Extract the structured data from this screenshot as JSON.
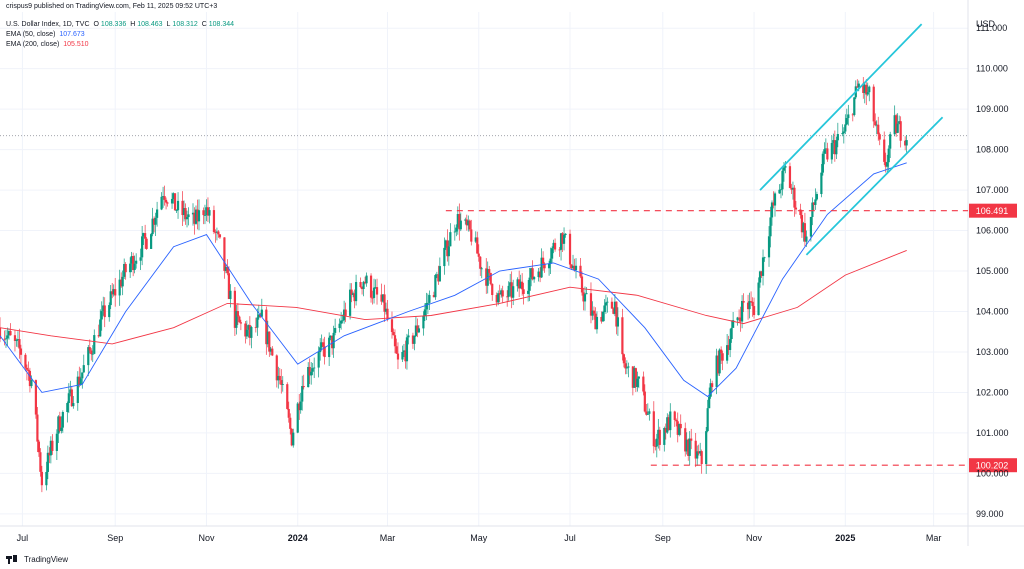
{
  "header": {
    "published": "crispus9 published on TradingView.com, Feb 11, 2025 09:52 UTC+3",
    "symbol": "U.S. Dollar Index, 1D, TVC",
    "ohlc": {
      "o_label": "O",
      "o": "108.336",
      "h_label": "H",
      "h": "108.463",
      "l_label": "L",
      "l": "108.312",
      "c_label": "C",
      "c": "108.344"
    },
    "ema50": {
      "label": "EMA (50, close)",
      "value": "107.673"
    },
    "ema200": {
      "label": "EMA (200, close)",
      "value": "105.510"
    }
  },
  "footer": {
    "brand": "TradingView"
  },
  "chart_data": {
    "type": "candlestick",
    "currency": "USD",
    "ylim": [
      98.7,
      111.4
    ],
    "y_ticks": [
      "99.000",
      "100.000",
      "101.000",
      "102.000",
      "103.000",
      "104.000",
      "105.000",
      "106.000",
      "107.000",
      "108.000",
      "109.000",
      "110.000",
      "111.000"
    ],
    "x_range": [
      "2023-06-16",
      "2025-03-24"
    ],
    "x_ticks": [
      {
        "date": "2023-07-01",
        "label": "Jul",
        "bold": false
      },
      {
        "date": "2023-09-01",
        "label": "Sep",
        "bold": false
      },
      {
        "date": "2023-11-01",
        "label": "Nov",
        "bold": false
      },
      {
        "date": "2024-01-01",
        "label": "2024",
        "bold": true
      },
      {
        "date": "2024-03-01",
        "label": "Mar",
        "bold": false
      },
      {
        "date": "2024-05-01",
        "label": "May",
        "bold": false
      },
      {
        "date": "2024-07-01",
        "label": "Jul",
        "bold": false
      },
      {
        "date": "2024-09-01",
        "label": "Sep",
        "bold": false
      },
      {
        "date": "2024-11-01",
        "label": "Nov",
        "bold": false
      },
      {
        "date": "2025-01-01",
        "label": "2025",
        "bold": true
      },
      {
        "date": "2025-03-01",
        "label": "Mar",
        "bold": false
      }
    ],
    "price_path": [
      [
        "2023-06-16",
        103.6
      ],
      [
        "2023-06-30",
        103.0
      ],
      [
        "2023-07-07",
        102.3
      ],
      [
        "2023-07-14",
        99.8
      ],
      [
        "2023-07-25",
        101.2
      ],
      [
        "2023-08-10",
        102.5
      ],
      [
        "2023-08-25",
        104.0
      ],
      [
        "2023-09-08",
        105.0
      ],
      [
        "2023-09-22",
        105.8
      ],
      [
        "2023-10-03",
        107.0
      ],
      [
        "2023-10-13",
        106.5
      ],
      [
        "2023-10-24",
        106.2
      ],
      [
        "2023-10-31",
        106.6
      ],
      [
        "2023-11-10",
        105.6
      ],
      [
        "2023-11-20",
        103.8
      ],
      [
        "2023-11-30",
        103.4
      ],
      [
        "2023-12-08",
        103.8
      ],
      [
        "2023-12-20",
        102.3
      ],
      [
        "2023-12-28",
        100.9
      ],
      [
        "2024-01-05",
        102.4
      ],
      [
        "2024-01-15",
        102.9
      ],
      [
        "2024-01-25",
        103.3
      ],
      [
        "2024-02-05",
        104.3
      ],
      [
        "2024-02-14",
        104.8
      ],
      [
        "2024-02-28",
        104.1
      ],
      [
        "2024-03-08",
        102.7
      ],
      [
        "2024-03-20",
        103.5
      ],
      [
        "2024-04-01",
        104.6
      ],
      [
        "2024-04-16",
        106.3
      ],
      [
        "2024-04-26",
        105.9
      ],
      [
        "2024-05-03",
        105.1
      ],
      [
        "2024-05-15",
        104.3
      ],
      [
        "2024-05-28",
        104.6
      ],
      [
        "2024-06-07",
        104.9
      ],
      [
        "2024-06-26",
        105.9
      ],
      [
        "2024-07-05",
        104.9
      ],
      [
        "2024-07-17",
        103.8
      ],
      [
        "2024-07-31",
        104.2
      ],
      [
        "2024-08-05",
        102.7
      ],
      [
        "2024-08-16",
        102.2
      ],
      [
        "2024-08-27",
        100.8
      ],
      [
        "2024-09-06",
        101.3
      ],
      [
        "2024-09-17",
        100.7
      ],
      [
        "2024-09-27",
        100.3
      ],
      [
        "2024-10-04",
        102.4
      ],
      [
        "2024-10-15",
        103.3
      ],
      [
        "2024-10-25",
        104.2
      ],
      [
        "2024-11-01",
        104.1
      ],
      [
        "2024-11-13",
        106.5
      ],
      [
        "2024-11-22",
        107.5
      ],
      [
        "2024-12-06",
        105.8
      ],
      [
        "2024-12-18",
        107.8
      ],
      [
        "2024-12-31",
        108.4
      ],
      [
        "2025-01-10",
        109.6
      ],
      [
        "2025-01-17",
        109.3
      ],
      [
        "2025-01-27",
        107.5
      ],
      [
        "2025-02-03",
        108.6
      ],
      [
        "2025-02-11",
        108.344
      ]
    ],
    "ema50": [
      [
        "2023-06-16",
        103.4
      ],
      [
        "2023-07-14",
        102.0
      ],
      [
        "2023-08-10",
        102.2
      ],
      [
        "2023-09-08",
        104.0
      ],
      [
        "2023-10-10",
        105.6
      ],
      [
        "2023-11-01",
        105.9
      ],
      [
        "2023-12-01",
        104.2
      ],
      [
        "2024-01-01",
        102.7
      ],
      [
        "2024-02-01",
        103.4
      ],
      [
        "2024-03-15",
        104.0
      ],
      [
        "2024-04-15",
        104.4
      ],
      [
        "2024-05-15",
        105.0
      ],
      [
        "2024-06-20",
        105.2
      ],
      [
        "2024-07-20",
        104.8
      ],
      [
        "2024-08-20",
        103.6
      ],
      [
        "2024-09-15",
        102.3
      ],
      [
        "2024-10-01",
        101.9
      ],
      [
        "2024-10-20",
        102.6
      ],
      [
        "2024-11-20",
        104.8
      ],
      [
        "2024-12-20",
        106.4
      ],
      [
        "2025-01-20",
        107.4
      ],
      [
        "2025-02-11",
        107.673
      ]
    ],
    "ema200": [
      [
        "2023-06-16",
        103.6
      ],
      [
        "2023-07-20",
        103.4
      ],
      [
        "2023-08-30",
        103.2
      ],
      [
        "2023-10-10",
        103.6
      ],
      [
        "2023-11-15",
        104.2
      ],
      [
        "2023-12-31",
        104.1
      ],
      [
        "2024-02-15",
        103.8
      ],
      [
        "2024-03-30",
        103.9
      ],
      [
        "2024-05-15",
        104.2
      ],
      [
        "2024-07-01",
        104.6
      ],
      [
        "2024-08-15",
        104.4
      ],
      [
        "2024-09-30",
        103.9
      ],
      [
        "2024-10-25",
        103.7
      ],
      [
        "2024-11-30",
        104.1
      ],
      [
        "2025-01-01",
        104.9
      ],
      [
        "2025-02-11",
        105.51
      ]
    ],
    "horizontal_levels": [
      {
        "value": 106.491,
        "label": "106.491",
        "from": "2024-04-09",
        "to": "2025-03-24"
      },
      {
        "value": 100.202,
        "label": "100.202",
        "from": "2024-08-24",
        "to": "2025-03-24"
      }
    ],
    "channel_lines": [
      {
        "from": [
          "2024-11-05",
          107.0
        ],
        "to": [
          "2025-02-21",
          111.1
        ]
      },
      {
        "from": [
          "2024-12-06",
          105.4
        ],
        "to": [
          "2025-03-07",
          108.8
        ]
      }
    ],
    "last_price_line": 108.344,
    "colors": {
      "up": "#089981",
      "down": "#f23645",
      "ema50": "#2962ff",
      "ema200": "#f23645",
      "channel": "#26c6da",
      "level": "#f23645"
    }
  }
}
